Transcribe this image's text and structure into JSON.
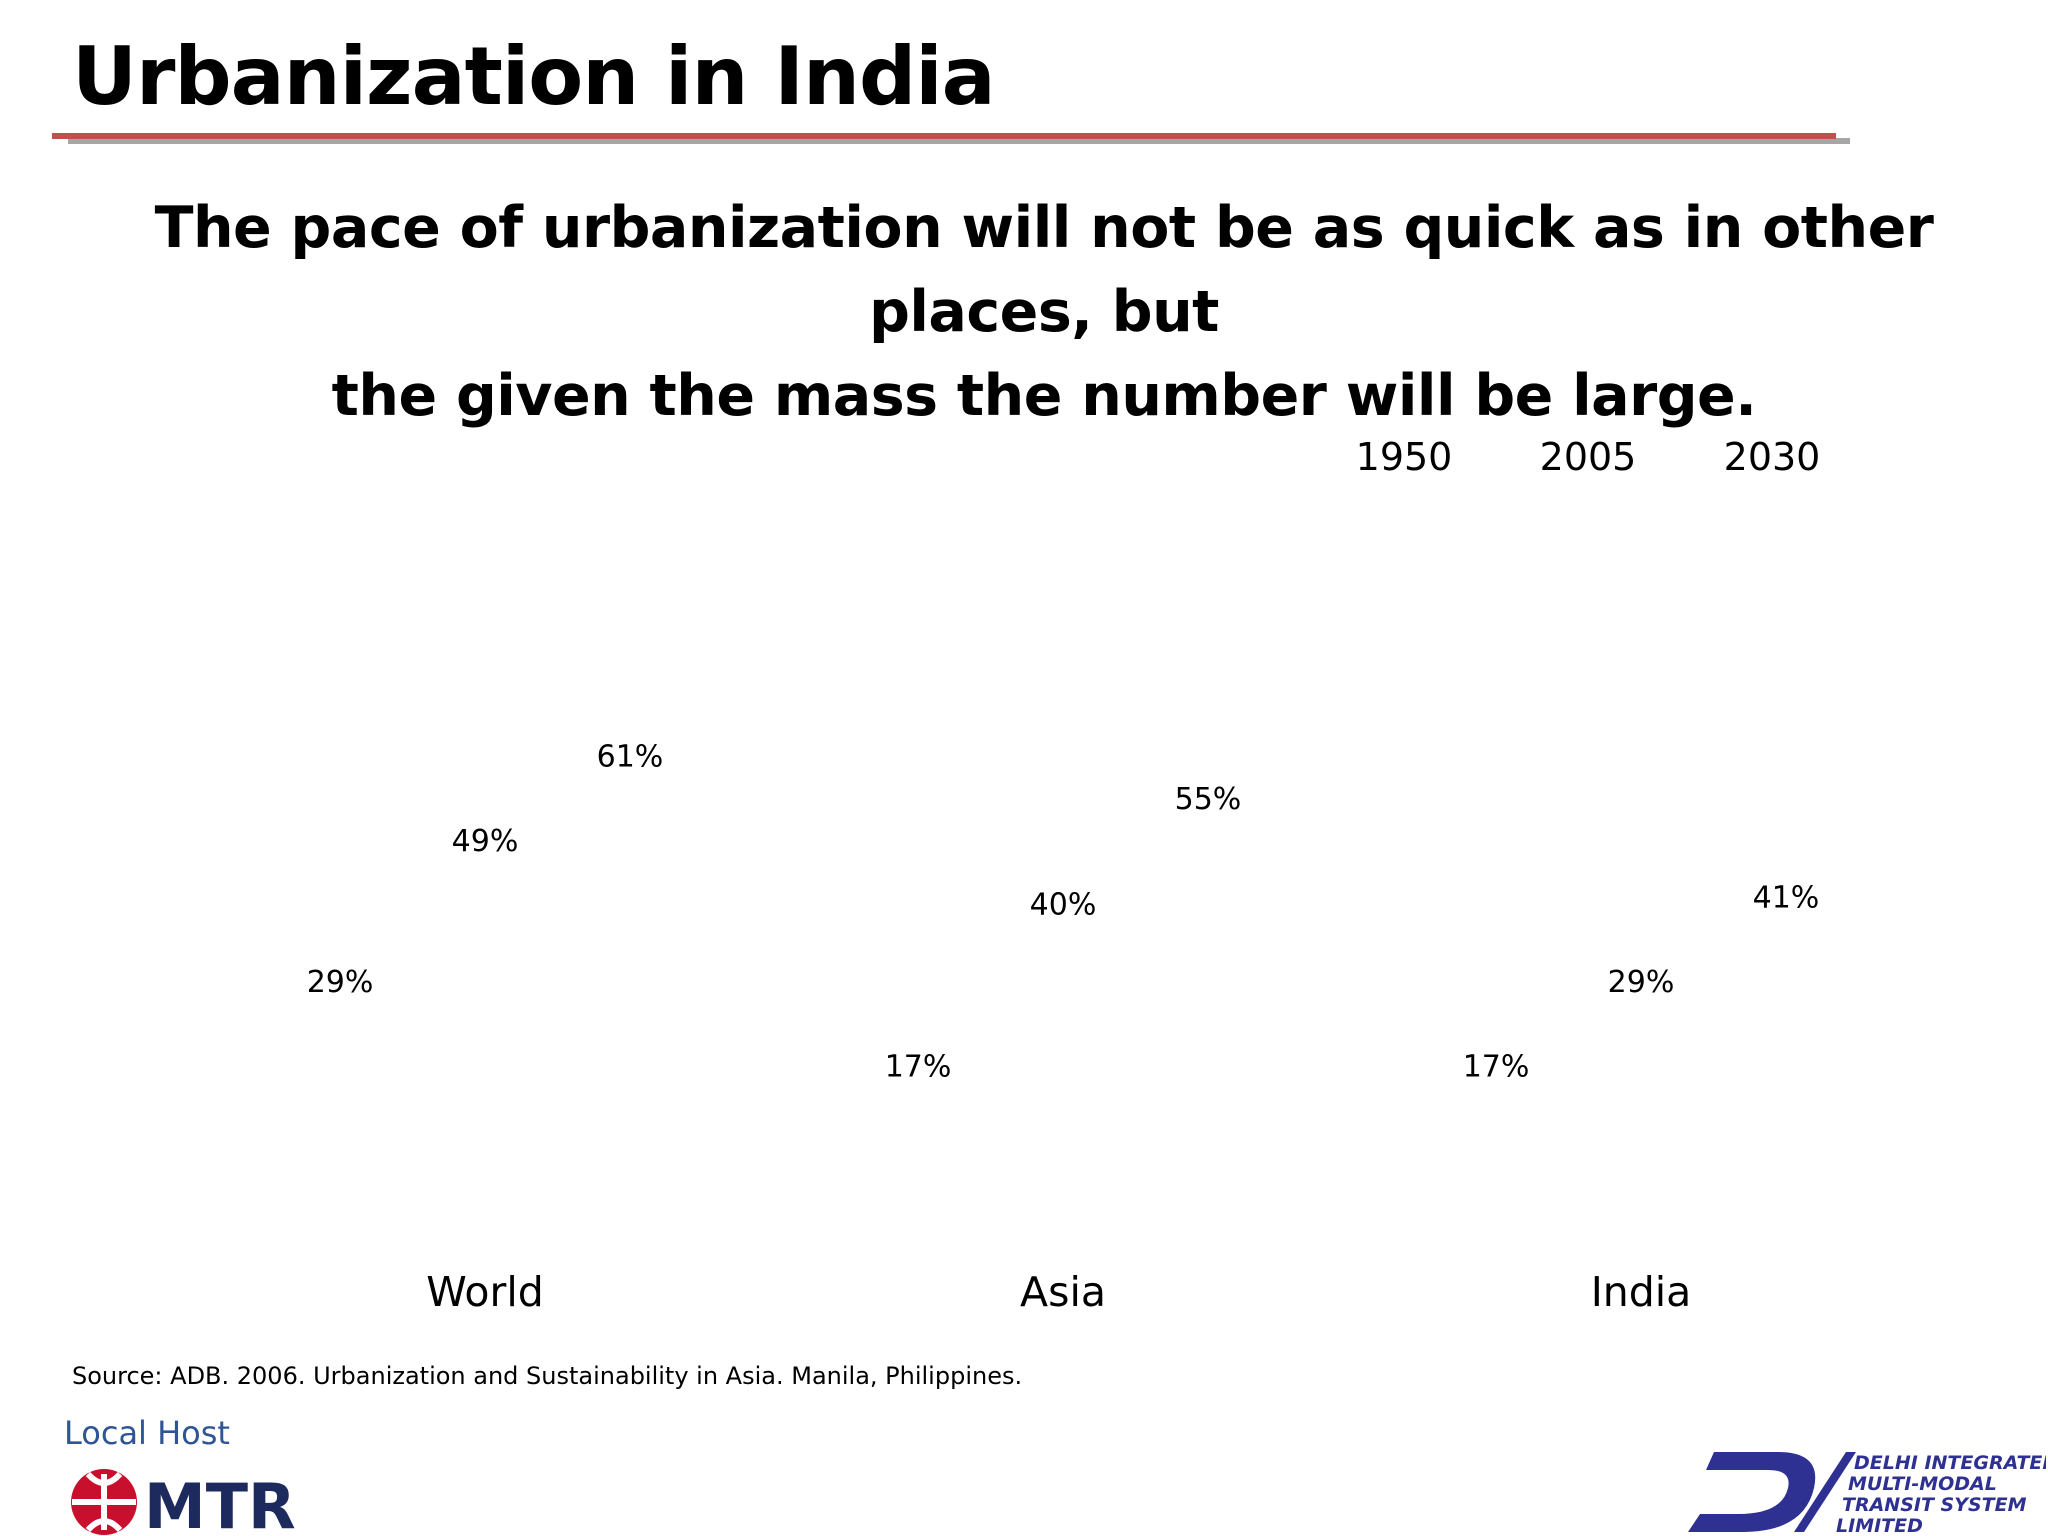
{
  "slide": {
    "title": "Urbanization in India",
    "subtitle_line1": "The pace of urbanization will not be as quick as in other places, but",
    "subtitle_line2": "the given the mass the number will be large.",
    "source": "Source: ADB. 2006. Urbanization and Sustainability in Asia. Manila, Philippines.",
    "host_label": "Local Host",
    "mtr_logo_text": "MTR",
    "dimts_logo_text": [
      "DELHI INTEGRATED",
      "MULTI-MODAL",
      "TRANSIT SYSTEM",
      "LIMITED"
    ]
  },
  "colors": {
    "red_rule": "#c0504d",
    "grey_rule": "#a6a6a6",
    "mtr_red": "#c8102e",
    "mtr_navy": "#1c2a5e",
    "dimts_blue": "#2e3192"
  },
  "chart_data": {
    "type": "bar",
    "categories": [
      "World",
      "Asia",
      "India"
    ],
    "series": [
      {
        "name": "1950",
        "values": [
          29,
          17,
          17
        ]
      },
      {
        "name": "2005",
        "values": [
          49,
          40,
          29
        ]
      },
      {
        "name": "2030",
        "values": [
          61,
          55,
          41
        ]
      }
    ],
    "data_labels": [
      [
        "29%",
        "49%",
        "61%"
      ],
      [
        "17%",
        "40%",
        "55%"
      ],
      [
        "17%",
        "29%",
        "41%"
      ]
    ],
    "legend_position": "top-right",
    "bars_visible": false,
    "ylim": [
      0,
      70
    ]
  }
}
